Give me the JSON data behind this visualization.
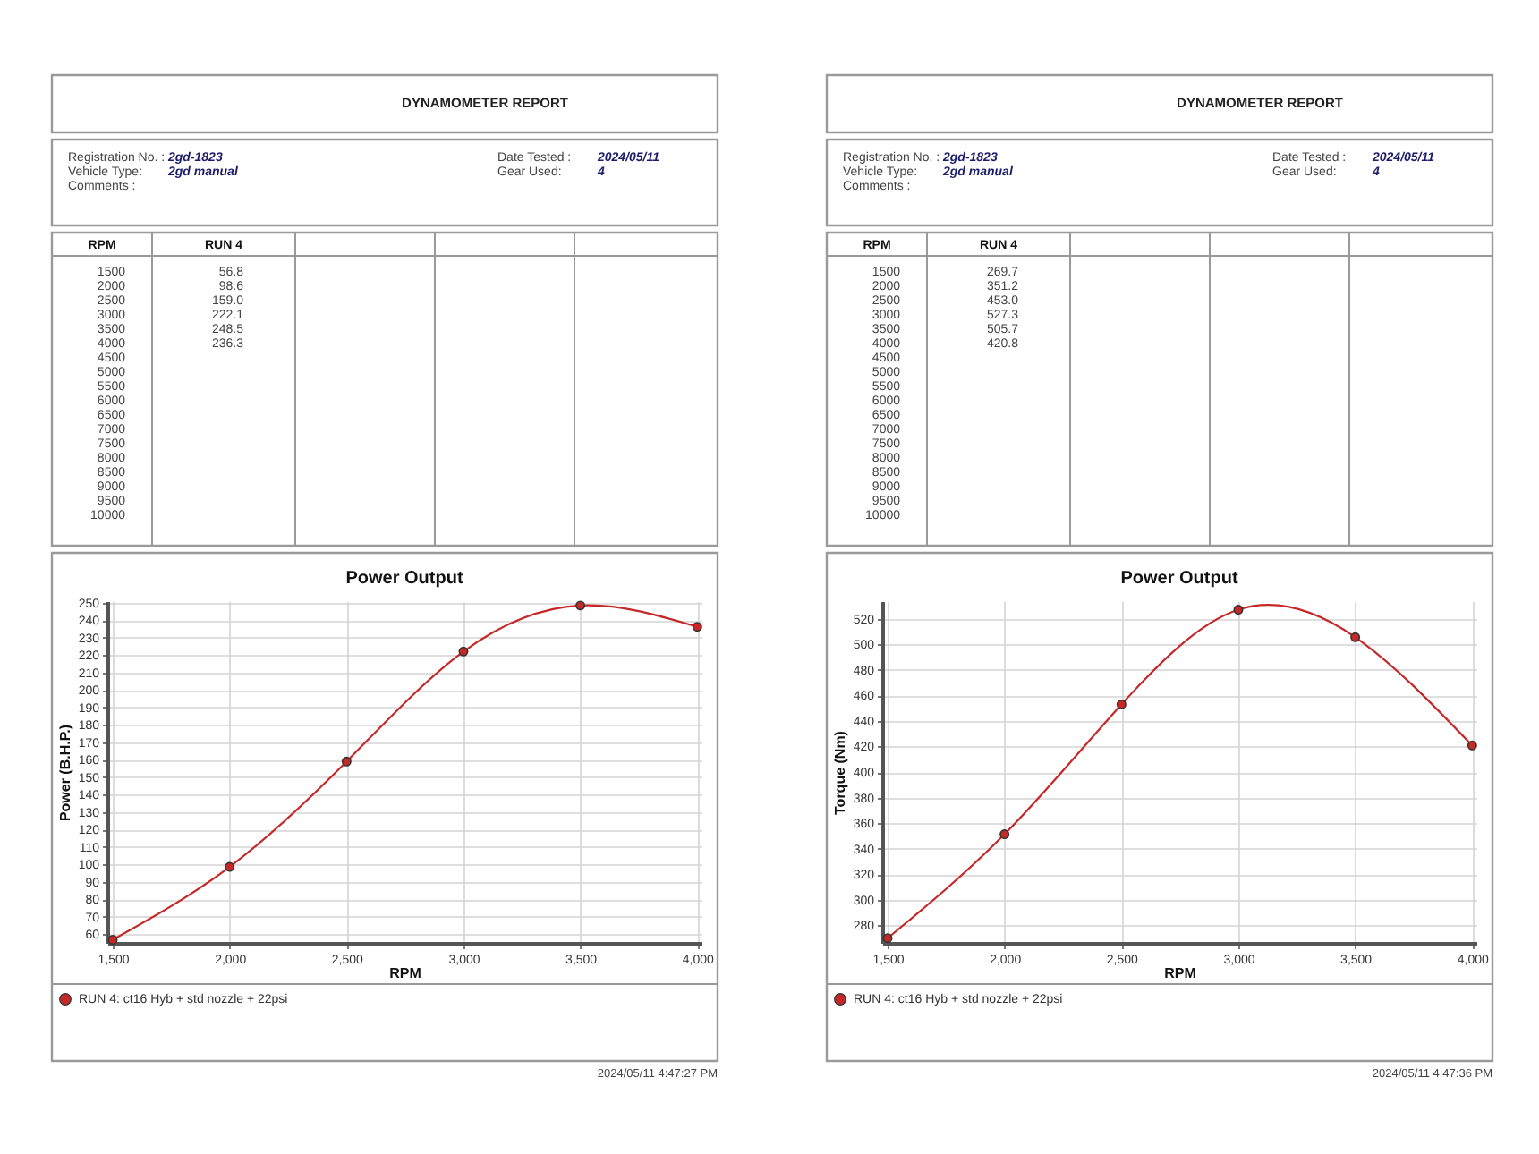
{
  "chart_data": [
    {
      "type": "line",
      "title": "Power Output",
      "xlabel": "RPM",
      "ylabel": "Power (B.H.P.)",
      "x": [
        1500,
        2000,
        2500,
        3000,
        3500,
        4000
      ],
      "series": [
        {
          "name": "RUN 4: ct16 Hyb + std nozzle + 22psi",
          "color": "#c62828",
          "values": [
            56.8,
            98.6,
            159.0,
            222.1,
            248.5,
            236.3
          ]
        }
      ],
      "xlim": [
        1477,
        4018
      ],
      "xticks": [
        {
          "value": 1500,
          "label": "1,500"
        },
        {
          "value": 2000,
          "label": "2,000"
        },
        {
          "value": 2500,
          "label": "2,500"
        },
        {
          "value": 3000,
          "label": "3,000"
        },
        {
          "value": 3500,
          "label": "3,500"
        },
        {
          "value": 4000,
          "label": "4,000"
        }
      ],
      "ylim": [
        55,
        251
      ],
      "yticks": [
        60,
        70,
        80,
        90,
        100,
        110,
        120,
        130,
        140,
        150,
        160,
        170,
        180,
        190,
        200,
        210,
        220,
        230,
        240,
        250
      ],
      "grid": true,
      "legend": "bottom",
      "marker": "circle",
      "annotations": [
        "DYNAMOMETER REPORT",
        "Registration No. :",
        "2gd-1823",
        "Date Tested :",
        "2024/05/11",
        "Vehicle Type:",
        "2gd manual",
        "Gear Used:",
        "4",
        "Comments :",
        "RPM",
        "1500",
        "2000",
        "2500",
        "3000",
        "3500",
        "4000",
        "4500",
        "5000",
        "5500",
        "6000",
        "6500",
        "7000",
        "7500",
        "8000",
        "8500",
        "9000",
        "9500",
        "10000",
        "RUN 4",
        "56.8",
        "98.6",
        "159.0",
        "222.1",
        "248.5",
        "236.3",
        "2024/05/11 4:47:27 PM"
      ]
    },
    {
      "type": "line",
      "title": "Power Output",
      "xlabel": "RPM",
      "ylabel": "Torque (Nm)",
      "x": [
        1500,
        2000,
        2500,
        3000,
        3500,
        4000
      ],
      "series": [
        {
          "name": "RUN 4: ct16 Hyb + std nozzle + 22psi",
          "color": "#c62828",
          "values": [
            269.7,
            351.2,
            453.0,
            527.3,
            505.7,
            420.8
          ]
        }
      ],
      "xlim": [
        1477,
        4018
      ],
      "xticks": [
        {
          "value": 1500,
          "label": "1,500"
        },
        {
          "value": 2000,
          "label": "2,000"
        },
        {
          "value": 2500,
          "label": "2,500"
        },
        {
          "value": 3000,
          "label": "3,000"
        },
        {
          "value": 3500,
          "label": "3,500"
        },
        {
          "value": 4000,
          "label": "4,000"
        }
      ],
      "ylim": [
        266,
        534
      ],
      "yticks": [
        280,
        300,
        320,
        340,
        360,
        380,
        400,
        420,
        440,
        460,
        480,
        500,
        520
      ],
      "grid": true,
      "legend": "bottom",
      "marker": "circle",
      "annotations": [
        "DYNAMOMETER REPORT",
        "Registration No. :",
        "2gd-1823",
        "Date Tested :",
        "2024/05/11",
        "Vehicle Type:",
        "2gd manual",
        "Gear Used:",
        "4",
        "Comments :",
        "RPM",
        "1500",
        "2000",
        "2500",
        "3000",
        "3500",
        "4000",
        "4500",
        "5000",
        "5500",
        "6000",
        "6500",
        "7000",
        "7500",
        "8000",
        "8500",
        "9000",
        "9500",
        "10000",
        "RUN 4",
        "269.7",
        "351.2",
        "453.0",
        "527.3",
        "505.7",
        "420.8",
        "2024/05/11 4:47:36 PM"
      ]
    }
  ]
}
